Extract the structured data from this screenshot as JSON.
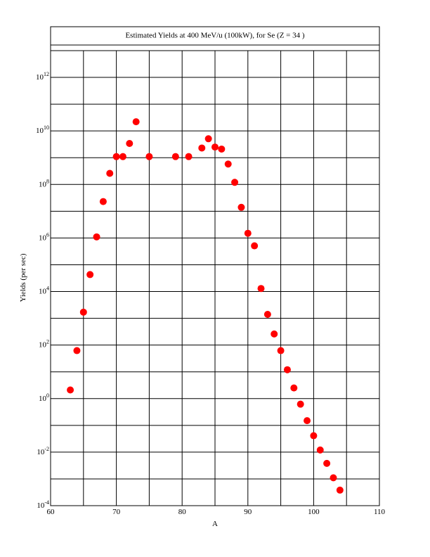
{
  "chart_data": {
    "type": "scatter",
    "title": "Estimated Yields at 400 MeV/u (100kW), for Se (Z = 34 )",
    "x_label": "A",
    "y_label": "Yields (per sec)",
    "x": [
      63,
      64,
      65,
      66,
      67,
      68,
      69,
      70,
      71,
      72,
      73,
      75,
      79,
      81,
      83,
      84,
      85,
      86,
      87,
      88,
      89,
      90,
      91,
      92,
      93,
      94,
      95,
      96,
      97,
      98,
      99,
      100,
      101,
      102,
      103,
      104
    ],
    "values": [
      2.1,
      62,
      1700,
      43000,
      1100000,
      23000000,
      260000000,
      1100000000,
      1100000000,
      3400000000,
      22000000000,
      1100000000,
      1100000000,
      1100000000,
      2300000000,
      5100000000,
      2500000000,
      2100000000,
      580000000,
      120000000,
      14000000,
      1500000,
      510000,
      13000,
      1400,
      260,
      62,
      12,
      2.5,
      0.62,
      0.15,
      0.041,
      0.012,
      0.0038,
      0.0011,
      0.00038
    ],
    "color": "#ff0000",
    "xlim": [
      60,
      110
    ],
    "xticks": [
      60,
      70,
      80,
      90,
      100,
      110
    ],
    "minor_xticks": [
      65,
      75,
      85,
      95,
      105
    ],
    "ylim": [
      0.0001,
      10000000000000
    ],
    "log_y": true,
    "yticks": [
      {
        "value": 0.0001,
        "label": "10^-4"
      },
      {
        "value": 0.01,
        "label": "10^-2"
      },
      {
        "value": 1,
        "label": "10^0"
      },
      {
        "value": 100,
        "label": "10^2"
      },
      {
        "value": 10000,
        "label": "10^4"
      },
      {
        "value": 1000000,
        "label": "10^6"
      },
      {
        "value": 100000000,
        "label": "10^8"
      },
      {
        "value": 10000000000,
        "label": "10^10"
      },
      {
        "value": 1000000000000,
        "label": "10^12"
      }
    ],
    "minor_yticks": [
      0.001,
      0.1,
      10,
      1000,
      100000,
      10000000,
      1000000000,
      100000000000
    ],
    "grid": true
  }
}
